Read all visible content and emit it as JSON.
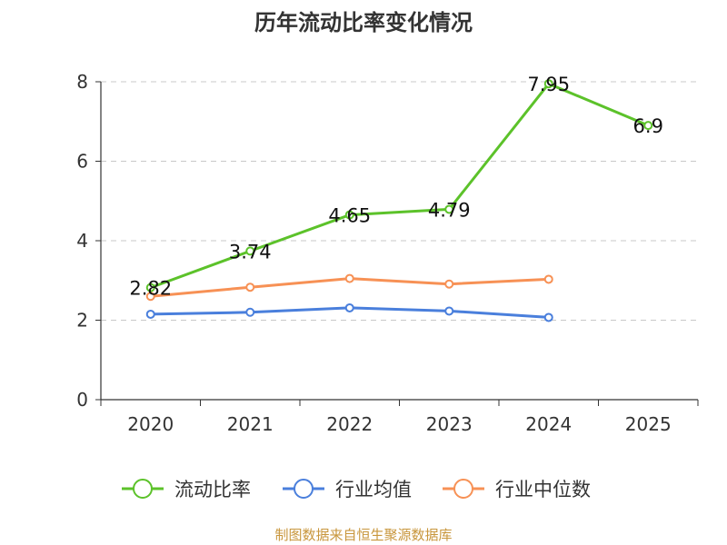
{
  "chart_data": {
    "type": "line",
    "title": "历年流动比率变化情况",
    "categories": [
      "2020",
      "2021",
      "2022",
      "2023",
      "2024",
      "2025"
    ],
    "ylim": [
      0,
      8
    ],
    "yticks": [
      0,
      2,
      4,
      6,
      8
    ],
    "grid": true,
    "legend_position": "bottom",
    "series": [
      {
        "key": "ratio",
        "name": "流动比率",
        "color": "#5cc22a",
        "show_labels": true,
        "values": [
          2.82,
          3.74,
          4.65,
          4.79,
          7.95,
          6.9
        ],
        "labels": [
          "2.82",
          "3.74",
          "4.65",
          "4.79",
          "7.95",
          "6.9"
        ]
      },
      {
        "key": "avg",
        "name": "行业均值",
        "color": "#4a7fdc",
        "show_labels": false,
        "values": [
          2.15,
          2.2,
          2.31,
          2.23,
          2.07,
          null
        ]
      },
      {
        "key": "median",
        "name": "行业中位数",
        "color": "#f79155",
        "show_labels": false,
        "values": [
          2.6,
          2.83,
          3.05,
          2.91,
          3.03,
          null
        ]
      }
    ]
  },
  "footer": {
    "source": "制图数据来自恒生聚源数据库"
  }
}
